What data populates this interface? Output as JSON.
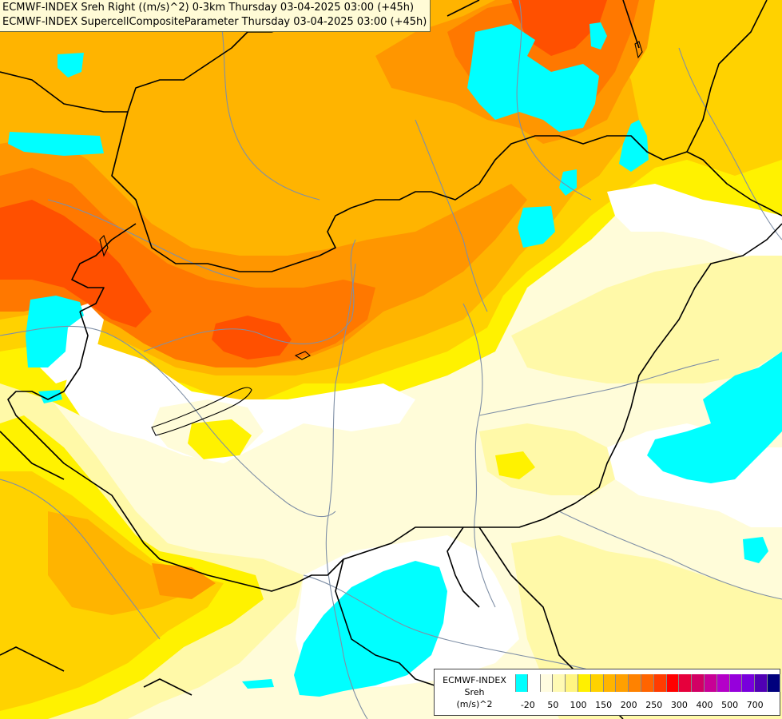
{
  "title_lines": [
    "ECMWF-INDEX Sreh Right ((m/s)^2) 0-3km Thursday 03-04-2025 03:00 (+45h)",
    "ECMWF-INDEX SupercellCompositeParameter Thursday 03-04-2025 03:00 (+45h)"
  ],
  "legend": {
    "line1": "ECMWF-INDEX",
    "line2": "Sreh",
    "line3": "(m/s)^2",
    "colors": [
      "#00ffff",
      "#ffffff",
      "#fffce0",
      "#fffab4",
      "#fff582",
      "#fff000",
      "#ffd200",
      "#ffb400",
      "#ffa000",
      "#ff8200",
      "#ff6400",
      "#ff3c00",
      "#ff0000",
      "#e6003c",
      "#d20064",
      "#c80096",
      "#b400c8",
      "#9600dc",
      "#7800dc",
      "#5000b4",
      "#00007d"
    ],
    "tick_labels": [
      "-20",
      "50",
      "100",
      "150",
      "200",
      "250",
      "300",
      "400",
      "500",
      "700"
    ]
  },
  "colors": {
    "cyan": "#00ffff",
    "white": "#ffffff",
    "pale": "#fffcd9",
    "light_yellow": "#fff9a8",
    "yellow": "#fff200",
    "gold": "#ffd200",
    "orange_light": "#ffb400",
    "orange": "#ff9600",
    "orange_deep": "#ff7800",
    "red_orange": "#ff5000",
    "border": "#000000",
    "river": "#7f8fa6"
  }
}
